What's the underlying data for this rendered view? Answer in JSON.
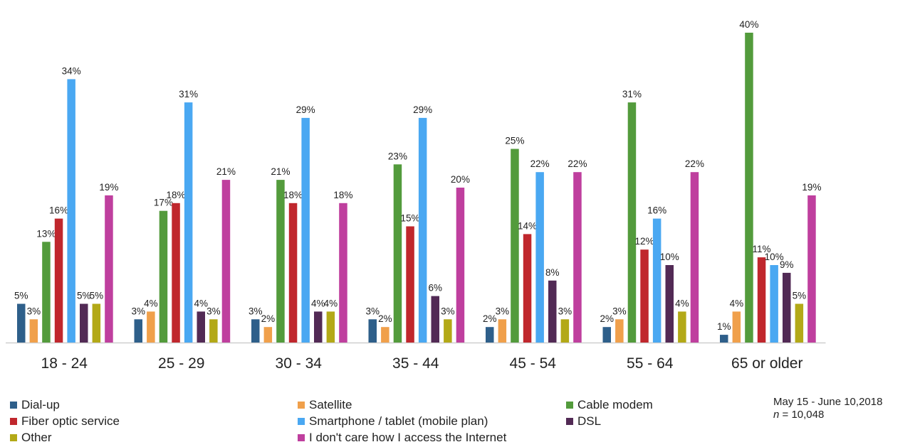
{
  "chart_data": {
    "type": "bar",
    "title": "",
    "xlabel": "",
    "ylabel": "",
    "ylim": [
      0,
      40
    ],
    "grid": false,
    "legend_position": "bottom",
    "categories": [
      "18 - 24",
      "25 - 29",
      "30 - 34",
      "35 - 44",
      "45 - 54",
      "55 - 64",
      "65 or older"
    ],
    "series": [
      {
        "name": "Dial-up",
        "color": "#2e5f8a",
        "values": [
          5,
          3,
          3,
          3,
          2,
          2,
          1
        ]
      },
      {
        "name": "Satellite",
        "color": "#f0a04b",
        "values": [
          3,
          4,
          2,
          2,
          3,
          3,
          4
        ]
      },
      {
        "name": "Cable modem",
        "color": "#539b3c",
        "values": [
          13,
          17,
          21,
          23,
          25,
          31,
          40
        ]
      },
      {
        "name": "Fiber optic service",
        "color": "#c0272d",
        "values": [
          16,
          18,
          18,
          15,
          14,
          12,
          11
        ]
      },
      {
        "name": "Smartphone / tablet (mobile plan)",
        "color": "#4aa8f2",
        "values": [
          34,
          31,
          29,
          29,
          22,
          16,
          10
        ]
      },
      {
        "name": "DSL",
        "color": "#522a55",
        "values": [
          5,
          4,
          4,
          6,
          8,
          10,
          9
        ]
      },
      {
        "name": "Other",
        "color": "#b3a917",
        "values": [
          5,
          3,
          4,
          3,
          3,
          4,
          5
        ]
      },
      {
        "name": "I don't care how I access the Internet",
        "color": "#bf3f9e",
        "values": [
          19,
          21,
          18,
          20,
          22,
          22,
          19
        ]
      }
    ]
  },
  "note": {
    "date_range": "May 15 - June 10,2018",
    "n_label": "n",
    "n_value": " = 10,048"
  }
}
